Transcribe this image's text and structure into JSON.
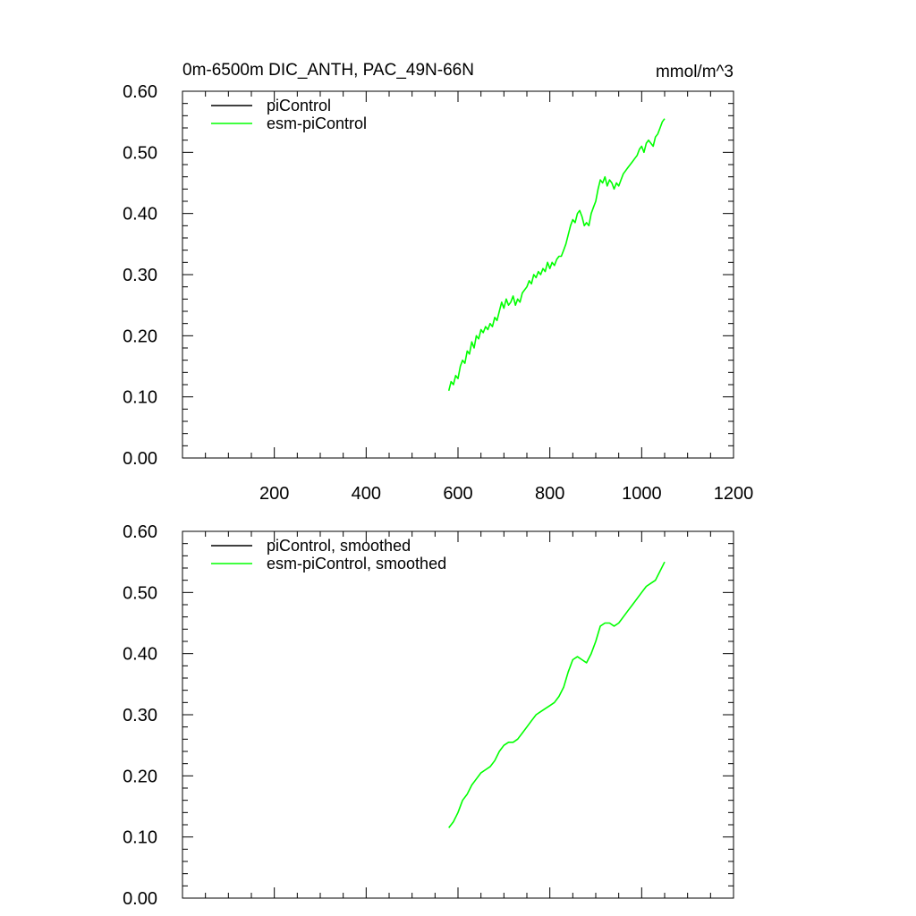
{
  "figure": {
    "title": "0m-6500m DIC_ANTH, PAC_49N-66N",
    "units": "mmol/m^3",
    "colors": {
      "picontrol": "#000000",
      "esm_picontrol": "#00ff00",
      "axes": "#000000",
      "background": "#ffffff"
    }
  },
  "chart_data": [
    {
      "type": "line",
      "panel": "top",
      "title": "0m-6500m DIC_ANTH, PAC_49N-66N",
      "units": "mmol/m^3",
      "xlabel": "",
      "ylabel": "",
      "xlim": [
        0,
        1200
      ],
      "ylim": [
        0,
        0.6
      ],
      "x_ticks": [
        200,
        400,
        600,
        800,
        1000,
        1200
      ],
      "x_tick_labels": [
        "200",
        "400",
        "600",
        "800",
        "1000",
        "1200"
      ],
      "y_ticks": [
        0,
        0.1,
        0.2,
        0.3,
        0.4,
        0.5,
        0.6
      ],
      "y_tick_labels": [
        "0.00",
        "0.10",
        "0.20",
        "0.30",
        "0.40",
        "0.50",
        "0.60"
      ],
      "grid": false,
      "legend_position": "top-left",
      "series": [
        {
          "name": "piControl",
          "color": "#000000",
          "points": []
        },
        {
          "name": "esm-piControl",
          "color": "#00ff00",
          "points": [
            [
              580,
              0.11
            ],
            [
              585,
              0.125
            ],
            [
              590,
              0.12
            ],
            [
              595,
              0.135
            ],
            [
              600,
              0.13
            ],
            [
              605,
              0.15
            ],
            [
              610,
              0.16
            ],
            [
              615,
              0.155
            ],
            [
              620,
              0.175
            ],
            [
              625,
              0.17
            ],
            [
              630,
              0.19
            ],
            [
              635,
              0.18
            ],
            [
              640,
              0.2
            ],
            [
              645,
              0.195
            ],
            [
              650,
              0.21
            ],
            [
              655,
              0.205
            ],
            [
              660,
              0.215
            ],
            [
              665,
              0.21
            ],
            [
              670,
              0.22
            ],
            [
              675,
              0.215
            ],
            [
              680,
              0.23
            ],
            [
              685,
              0.225
            ],
            [
              690,
              0.24
            ],
            [
              695,
              0.255
            ],
            [
              700,
              0.245
            ],
            [
              705,
              0.26
            ],
            [
              710,
              0.25
            ],
            [
              715,
              0.255
            ],
            [
              720,
              0.265
            ],
            [
              725,
              0.25
            ],
            [
              730,
              0.26
            ],
            [
              735,
              0.255
            ],
            [
              740,
              0.27
            ],
            [
              745,
              0.275
            ],
            [
              750,
              0.28
            ],
            [
              755,
              0.29
            ],
            [
              760,
              0.285
            ],
            [
              765,
              0.3
            ],
            [
              770,
              0.295
            ],
            [
              775,
              0.305
            ],
            [
              780,
              0.3
            ],
            [
              785,
              0.31
            ],
            [
              790,
              0.305
            ],
            [
              795,
              0.32
            ],
            [
              800,
              0.31
            ],
            [
              805,
              0.32
            ],
            [
              810,
              0.315
            ],
            [
              815,
              0.325
            ],
            [
              820,
              0.33
            ],
            [
              825,
              0.33
            ],
            [
              830,
              0.34
            ],
            [
              835,
              0.35
            ],
            [
              840,
              0.365
            ],
            [
              845,
              0.38
            ],
            [
              850,
              0.39
            ],
            [
              855,
              0.385
            ],
            [
              860,
              0.4
            ],
            [
              865,
              0.405
            ],
            [
              870,
              0.395
            ],
            [
              875,
              0.38
            ],
            [
              880,
              0.385
            ],
            [
              885,
              0.38
            ],
            [
              890,
              0.4
            ],
            [
              895,
              0.41
            ],
            [
              900,
              0.42
            ],
            [
              905,
              0.44
            ],
            [
              910,
              0.455
            ],
            [
              915,
              0.45
            ],
            [
              920,
              0.46
            ],
            [
              925,
              0.445
            ],
            [
              930,
              0.455
            ],
            [
              935,
              0.45
            ],
            [
              940,
              0.44
            ],
            [
              945,
              0.45
            ],
            [
              950,
              0.445
            ],
            [
              955,
              0.455
            ],
            [
              960,
              0.465
            ],
            [
              965,
              0.47
            ],
            [
              970,
              0.475
            ],
            [
              975,
              0.48
            ],
            [
              980,
              0.485
            ],
            [
              985,
              0.49
            ],
            [
              990,
              0.495
            ],
            [
              995,
              0.505
            ],
            [
              1000,
              0.51
            ],
            [
              1005,
              0.5
            ],
            [
              1010,
              0.515
            ],
            [
              1015,
              0.52
            ],
            [
              1020,
              0.515
            ],
            [
              1025,
              0.51
            ],
            [
              1030,
              0.525
            ],
            [
              1035,
              0.53
            ],
            [
              1040,
              0.54
            ],
            [
              1045,
              0.55
            ],
            [
              1050,
              0.555
            ]
          ]
        }
      ]
    },
    {
      "type": "line",
      "panel": "bottom",
      "title": "",
      "xlabel": "",
      "ylabel": "",
      "xlim": [
        0,
        1200
      ],
      "ylim": [
        0,
        0.6
      ],
      "x_ticks": [
        200,
        400,
        600,
        800,
        1000,
        1200
      ],
      "x_tick_labels": [],
      "y_ticks": [
        0,
        0.1,
        0.2,
        0.3,
        0.4,
        0.5,
        0.6
      ],
      "y_tick_labels": [
        "0.00",
        "0.10",
        "0.20",
        "0.30",
        "0.40",
        "0.50",
        "0.60"
      ],
      "grid": false,
      "legend_position": "top-left",
      "series": [
        {
          "name": "piControl, smoothed",
          "color": "#000000",
          "points": []
        },
        {
          "name": "esm-piControl, smoothed",
          "color": "#00ff00",
          "points": [
            [
              580,
              0.115
            ],
            [
              590,
              0.125
            ],
            [
              600,
              0.14
            ],
            [
              610,
              0.16
            ],
            [
              620,
              0.17
            ],
            [
              630,
              0.185
            ],
            [
              640,
              0.195
            ],
            [
              650,
              0.205
            ],
            [
              660,
              0.21
            ],
            [
              670,
              0.215
            ],
            [
              680,
              0.225
            ],
            [
              690,
              0.24
            ],
            [
              700,
              0.25
            ],
            [
              710,
              0.255
            ],
            [
              720,
              0.255
            ],
            [
              730,
              0.26
            ],
            [
              740,
              0.27
            ],
            [
              750,
              0.28
            ],
            [
              760,
              0.29
            ],
            [
              770,
              0.3
            ],
            [
              780,
              0.305
            ],
            [
              790,
              0.31
            ],
            [
              800,
              0.315
            ],
            [
              810,
              0.32
            ],
            [
              820,
              0.33
            ],
            [
              830,
              0.345
            ],
            [
              840,
              0.37
            ],
            [
              850,
              0.39
            ],
            [
              860,
              0.395
            ],
            [
              870,
              0.39
            ],
            [
              880,
              0.385
            ],
            [
              890,
              0.4
            ],
            [
              900,
              0.42
            ],
            [
              910,
              0.445
            ],
            [
              920,
              0.45
            ],
            [
              930,
              0.45
            ],
            [
              940,
              0.445
            ],
            [
              950,
              0.45
            ],
            [
              960,
              0.46
            ],
            [
              970,
              0.47
            ],
            [
              980,
              0.48
            ],
            [
              990,
              0.49
            ],
            [
              1000,
              0.5
            ],
            [
              1010,
              0.51
            ],
            [
              1020,
              0.515
            ],
            [
              1030,
              0.52
            ],
            [
              1040,
              0.535
            ],
            [
              1050,
              0.55
            ]
          ]
        }
      ]
    }
  ]
}
